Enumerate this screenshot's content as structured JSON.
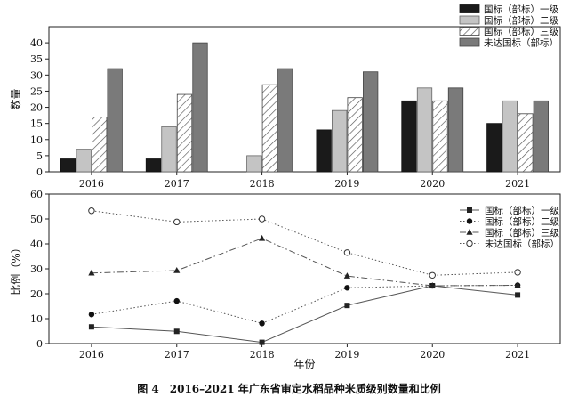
{
  "caption": "图 4　2016–2021 年广东省审定水稻品种米质级别数量和比例",
  "colors": {
    "grade1": "#1a1a1a",
    "grade2": "#c4c4c4",
    "grade3_stroke": "#555555",
    "ungraded": "#7a7a7a",
    "axis": "#222222"
  },
  "chart_data": [
    {
      "type": "bar",
      "ylabel": "数量",
      "categories": [
        "2016",
        "2017",
        "2018",
        "2019",
        "2020",
        "2021"
      ],
      "ylim": [
        0,
        45
      ],
      "yticks": [
        0,
        5,
        10,
        15,
        20,
        25,
        30,
        35,
        40
      ],
      "legend_position": "top-right",
      "series": [
        {
          "name": "国标（部标）一级",
          "values": [
            4,
            4,
            0,
            13,
            22,
            15
          ]
        },
        {
          "name": "国标（部标）二级",
          "values": [
            7,
            14,
            5,
            19,
            26,
            22
          ]
        },
        {
          "name": "国标（部标）三级",
          "values": [
            17,
            24,
            27,
            23,
            22,
            18
          ]
        },
        {
          "name": "未达国标（部标）",
          "values": [
            32,
            40,
            32,
            31,
            26,
            22
          ]
        }
      ]
    },
    {
      "type": "line",
      "xlabel": "年份",
      "ylabel": "比例（%）",
      "categories": [
        "2016",
        "2017",
        "2018",
        "2019",
        "2020",
        "2021"
      ],
      "ylim": [
        0,
        60
      ],
      "yticks": [
        0,
        10,
        20,
        30,
        40,
        50,
        60
      ],
      "legend_position": "top-right",
      "series": [
        {
          "name": "国标（部标）一级",
          "marker": "square",
          "line": "solid",
          "values": [
            6.7,
            4.9,
            0.5,
            15.3,
            23.2,
            19.5
          ]
        },
        {
          "name": "国标（部标）二级",
          "marker": "circle",
          "line": "dotted",
          "values": [
            11.7,
            17.1,
            8.1,
            22.4,
            23.2,
            23.4
          ]
        },
        {
          "name": "国标（部标）三级",
          "marker": "triangle",
          "line": "dashdot",
          "values": [
            28.3,
            29.3,
            42.2,
            27.1,
            23.2,
            23.4
          ]
        },
        {
          "name": "未达国标（部标）",
          "marker": "open-circle",
          "line": "dotted",
          "values": [
            53.3,
            48.8,
            50.0,
            36.5,
            27.4,
            28.6
          ]
        }
      ]
    }
  ]
}
